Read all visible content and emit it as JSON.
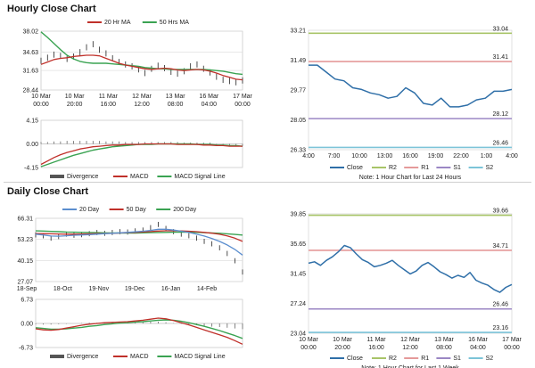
{
  "sections": {
    "hourly_title": "Hourly Close Chart",
    "daily_title": "Daily Close Chart"
  },
  "colors": {
    "close": "#2f6fa8",
    "ma_red": "#c0302a",
    "ma_green": "#3aa352",
    "ma_blue": "#5b8ecf",
    "r2": "#a8c468",
    "r1": "#e59a9a",
    "s1": "#9b87c4",
    "s2": "#7cc4d8"
  },
  "chart_data": [
    {
      "id": "hourly-price",
      "type": "line",
      "legend": [
        "20 Hr MA",
        "50 Hrs MA"
      ],
      "x_ticks": [
        "10 Mar|00:00",
        "10 Mar|20:00",
        "11 Mar|16:00",
        "12 Mar|12:00",
        "13 Mar|08:00",
        "16 Mar|04:00",
        "17 Mar|00:00"
      ],
      "y_ticks": [
        "38.02",
        "34.63",
        "31.63",
        "28.44"
      ],
      "ylim": [
        28.44,
        38.02
      ],
      "series": [
        {
          "name": "Close",
          "values": [
            33.2,
            33.7,
            34.2,
            34.0,
            33.5,
            33.9,
            34.6,
            35.4,
            35.9,
            35.0,
            34.4,
            33.6,
            33.0,
            32.6,
            32.3,
            31.8,
            31.2,
            31.9,
            32.4,
            32.0,
            31.4,
            31.1,
            31.5,
            32.3,
            32.6,
            31.9,
            31.3,
            30.6,
            30.1,
            29.9,
            29.7,
            30.0
          ]
        },
        {
          "name": "20 Hr MA",
          "values": [
            32.6,
            33.0,
            33.4,
            33.6,
            33.7,
            33.9,
            34.0,
            34.1,
            34.1,
            34.0,
            33.6,
            33.2,
            32.8,
            32.5,
            32.3,
            32.1,
            31.9,
            31.8,
            31.9,
            32.0,
            31.9,
            31.7,
            31.6,
            31.7,
            31.8,
            31.7,
            31.5,
            31.2,
            30.8,
            30.5,
            30.2,
            30.1
          ]
        },
        {
          "name": "50 Hrs MA",
          "values": [
            37.9,
            37.0,
            36.0,
            35.0,
            34.1,
            33.5,
            33.1,
            32.9,
            32.8,
            32.8,
            32.8,
            32.7,
            32.6,
            32.5,
            32.4,
            32.3,
            32.1,
            32.0,
            31.9,
            31.9,
            31.8,
            31.8,
            31.8,
            31.8,
            31.8,
            31.8,
            31.7,
            31.6,
            31.5,
            31.3,
            31.1,
            31.0
          ]
        }
      ]
    },
    {
      "id": "hourly-macd",
      "type": "line",
      "legend": [
        "Divergence",
        "MACD",
        "MACD Signal Line"
      ],
      "y_ticks": [
        "4.15",
        "0.00",
        "-4.15"
      ],
      "ylim": [
        -4.15,
        4.15
      ],
      "series": [
        {
          "name": "Divergence",
          "values": [
            0.1,
            0.1,
            0.2,
            0.2,
            0.3,
            0.3,
            0.3,
            0.3,
            0.3,
            0.3,
            0.2,
            0.2,
            0.2,
            0.1,
            0.1,
            0.1,
            0.1,
            0.1,
            0.1,
            0.1,
            0.1,
            0.1,
            0.0,
            0.0,
            0.0,
            0.0,
            0.0,
            -0.1,
            -0.1,
            -0.1,
            -0.1,
            -0.1
          ]
        },
        {
          "name": "MACD",
          "values": [
            -3.6,
            -3.0,
            -2.4,
            -1.9,
            -1.5,
            -1.2,
            -0.9,
            -0.7,
            -0.5,
            -0.4,
            -0.3,
            -0.2,
            -0.2,
            -0.1,
            -0.1,
            -0.1,
            0.0,
            0.0,
            0.0,
            0.0,
            0.0,
            -0.1,
            -0.1,
            -0.1,
            -0.1,
            -0.2,
            -0.2,
            -0.3,
            -0.3,
            -0.4,
            -0.4,
            -0.4
          ]
        },
        {
          "name": "MACD Signal Line",
          "values": [
            -4.0,
            -3.6,
            -3.2,
            -2.8,
            -2.4,
            -2.0,
            -1.7,
            -1.4,
            -1.1,
            -0.9,
            -0.7,
            -0.5,
            -0.4,
            -0.3,
            -0.2,
            -0.1,
            -0.1,
            -0.1,
            0.0,
            0.0,
            0.0,
            0.0,
            0.0,
            0.0,
            -0.1,
            -0.1,
            -0.1,
            -0.2,
            -0.2,
            -0.3,
            -0.3,
            -0.4
          ]
        }
      ]
    },
    {
      "id": "hourly-pivot",
      "type": "line",
      "x_ticks": [
        "4:00",
        "7:00",
        "10:00",
        "13:00",
        "16:00",
        "19:00",
        "22:00",
        "1:00",
        "4:00"
      ],
      "y_ticks": [
        "33.21",
        "31.49",
        "29.77",
        "28.05",
        "26.33"
      ],
      "ylim": [
        26.33,
        33.21
      ],
      "levels": [
        {
          "name": "R2",
          "value": 33.04,
          "label": "33.04"
        },
        {
          "name": "R1",
          "value": 31.41,
          "label": "31.41"
        },
        {
          "name": "S1",
          "value": 28.12,
          "label": "28.12"
        },
        {
          "name": "S2",
          "value": 26.46,
          "label": "26.46"
        }
      ],
      "series": [
        {
          "name": "Close",
          "values": [
            31.2,
            31.2,
            30.8,
            30.4,
            30.3,
            29.9,
            29.8,
            29.6,
            29.5,
            29.3,
            29.4,
            29.9,
            29.6,
            29.0,
            28.9,
            29.3,
            28.8,
            28.8,
            28.9,
            29.2,
            29.3,
            29.7,
            29.7,
            29.8
          ]
        }
      ],
      "legend": [
        "Close",
        "R2",
        "R1",
        "S1",
        "S2"
      ],
      "note": "Note: 1 Hour Chart for Last 24 Hours"
    },
    {
      "id": "daily-price",
      "type": "line",
      "legend": [
        "20 Day",
        "50 Day",
        "200 Day"
      ],
      "x_ticks": [
        "18-Sep",
        "18-Oct",
        "19-Nov",
        "19-Dec",
        "16-Jan",
        "14-Feb"
      ],
      "y_ticks": [
        "66.31",
        "53.23",
        "40.15",
        "27.07"
      ],
      "ylim": [
        27.07,
        66.31
      ],
      "series": [
        {
          "name": "Close",
          "values": [
            56.0,
            55.5,
            54.0,
            55.0,
            56.5,
            55.8,
            56.2,
            56.8,
            57.5,
            57.0,
            57.5,
            58.0,
            57.8,
            58.5,
            59.0,
            60.5,
            62.5,
            60.0,
            58.0,
            56.5,
            55.5,
            54.0,
            52.0,
            50.5,
            48.0,
            44.5,
            40.0,
            33.0
          ]
        },
        {
          "name": "20 Day",
          "values": [
            56.5,
            56.0,
            55.3,
            55.2,
            55.5,
            55.8,
            56.0,
            56.2,
            56.5,
            56.8,
            57.0,
            57.3,
            57.6,
            57.9,
            58.3,
            58.8,
            59.5,
            59.5,
            59.0,
            58.3,
            57.5,
            56.5,
            55.3,
            53.8,
            52.0,
            49.8,
            47.0,
            43.5
          ]
        },
        {
          "name": "50 Day",
          "values": [
            56.8,
            56.8,
            56.7,
            56.6,
            56.5,
            56.5,
            56.6,
            56.7,
            56.8,
            56.9,
            57.0,
            57.2,
            57.4,
            57.6,
            57.8,
            58.1,
            58.4,
            58.6,
            58.6,
            58.5,
            58.3,
            58.0,
            57.6,
            57.1,
            56.4,
            55.4,
            54.0,
            52.0
          ]
        },
        {
          "name": "200 Day",
          "values": [
            58.5,
            58.4,
            58.2,
            58.0,
            57.8,
            57.7,
            57.6,
            57.5,
            57.4,
            57.3,
            57.2,
            57.2,
            57.2,
            57.2,
            57.3,
            57.4,
            57.5,
            57.6,
            57.7,
            57.7,
            57.7,
            57.6,
            57.4,
            57.2,
            57.0,
            56.7,
            56.3,
            55.9
          ]
        }
      ]
    },
    {
      "id": "daily-macd",
      "type": "line",
      "legend": [
        "Divergence",
        "MACD",
        "MACD Signal Line"
      ],
      "y_ticks": [
        "6.73",
        "0.00",
        "-6.73"
      ],
      "ylim": [
        -6.73,
        6.73
      ],
      "series": [
        {
          "name": "Divergence",
          "values": [
            -0.2,
            -0.3,
            -0.3,
            -0.2,
            -0.1,
            0.0,
            0.1,
            0.2,
            0.2,
            0.3,
            0.3,
            0.3,
            0.3,
            0.4,
            0.4,
            0.5,
            0.5,
            0.3,
            0.1,
            -0.1,
            -0.3,
            -0.5,
            -0.7,
            -0.9,
            -1.0,
            -1.2,
            -1.4,
            -1.6
          ]
        },
        {
          "name": "MACD",
          "values": [
            -1.5,
            -1.8,
            -1.9,
            -1.7,
            -1.3,
            -0.9,
            -0.5,
            -0.2,
            0.0,
            0.2,
            0.3,
            0.4,
            0.5,
            0.7,
            0.9,
            1.2,
            1.5,
            1.3,
            0.8,
            0.2,
            -0.4,
            -1.1,
            -1.8,
            -2.5,
            -3.2,
            -3.9,
            -4.8,
            -5.8
          ]
        },
        {
          "name": "MACD Signal Line",
          "values": [
            -1.2,
            -1.4,
            -1.6,
            -1.6,
            -1.5,
            -1.3,
            -1.1,
            -0.8,
            -0.6,
            -0.3,
            -0.1,
            0.1,
            0.2,
            0.4,
            0.5,
            0.7,
            0.9,
            1.0,
            0.9,
            0.6,
            0.2,
            -0.3,
            -0.8,
            -1.4,
            -2.0,
            -2.7,
            -3.4,
            -4.2
          ]
        }
      ]
    },
    {
      "id": "daily-pivot",
      "type": "line",
      "x_ticks": [
        "10 Mar|00:00",
        "10 Mar|20:00",
        "11 Mar|16:00",
        "12 Mar|12:00",
        "13 Mar|08:00",
        "16 Mar|04:00",
        "17 Mar|00:00"
      ],
      "y_ticks": [
        "39.85",
        "35.65",
        "31.45",
        "27.24",
        "23.04"
      ],
      "ylim": [
        23.04,
        39.85
      ],
      "levels": [
        {
          "name": "R2",
          "value": 39.66,
          "label": "39.66"
        },
        {
          "name": "R1",
          "value": 34.71,
          "label": "34.71"
        },
        {
          "name": "S1",
          "value": 26.46,
          "label": "26.46"
        },
        {
          "name": "S2",
          "value": 23.16,
          "label": "23.16"
        }
      ],
      "series": [
        {
          "name": "Close",
          "values": [
            32.9,
            33.1,
            32.6,
            33.3,
            33.8,
            34.5,
            35.4,
            35.1,
            34.2,
            33.4,
            33.0,
            32.4,
            32.6,
            32.9,
            33.3,
            32.6,
            32.0,
            31.4,
            31.8,
            32.6,
            33.0,
            32.4,
            31.7,
            31.3,
            30.8,
            31.2,
            30.9,
            31.6,
            30.5,
            30.1,
            29.8,
            29.2,
            28.8,
            29.5,
            29.9
          ]
        }
      ],
      "legend": [
        "Close",
        "R2",
        "R1",
        "S1",
        "S2"
      ],
      "note": "Note: 1 Hour Chart for Last 1 Week"
    }
  ]
}
